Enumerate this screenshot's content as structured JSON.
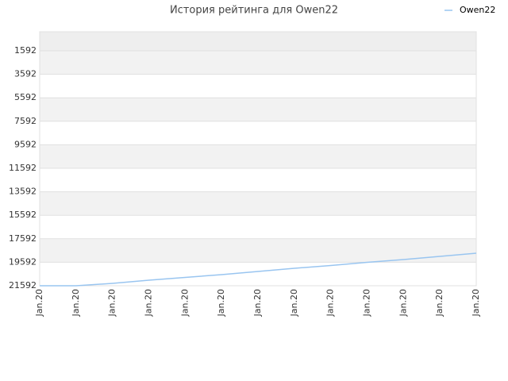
{
  "chart_data": {
    "type": "line",
    "title": "История рейтинга для Owen22",
    "categories": [
      "Jan.20",
      "Jan.20",
      "Jan.20",
      "Jan.20",
      "Jan.20",
      "Jan.20",
      "Jan.20",
      "Jan.20",
      "Jan.20",
      "Jan.20",
      "Jan.20",
      "Jan.20",
      "Jan.20"
    ],
    "series": [
      {
        "name": "Owen22",
        "color": "#99c5f0",
        "values": [
          21592,
          21592,
          21390,
          21120,
          20880,
          20645,
          20375,
          20105,
          19870,
          19600,
          19360,
          19090,
          18820
        ]
      }
    ],
    "ylim": [
      21592,
      -30
    ],
    "yticks": [
      1592,
      3592,
      5592,
      7592,
      9592,
      11592,
      13592,
      15592,
      17592,
      19592,
      21592
    ],
    "grid": true,
    "legend": "top-right"
  }
}
